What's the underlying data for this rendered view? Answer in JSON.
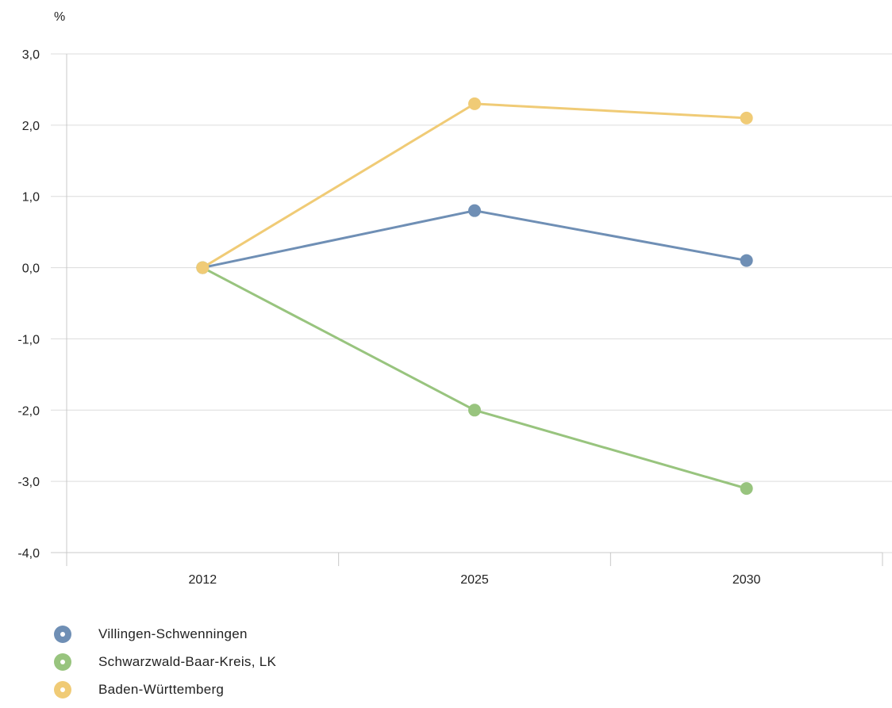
{
  "chart_data": {
    "type": "line",
    "y_unit": "%",
    "x": [
      "2012",
      "2025",
      "2030"
    ],
    "ylim": [
      -4.0,
      3.0
    ],
    "y_ticks": [
      "3,0",
      "2,0",
      "1,0",
      "0,0",
      "-1,0",
      "-2,0",
      "-3,0",
      "-4,0"
    ],
    "y_tick_values": [
      3,
      2,
      1,
      0,
      -1,
      -2,
      -3,
      -4
    ],
    "grid": true,
    "legend_position": "bottom-left",
    "series": [
      {
        "name": "Villingen-Schwenningen",
        "color": "#6f8fb5",
        "values": [
          0.0,
          0.8,
          0.1
        ]
      },
      {
        "name": "Schwarzwald-Baar-Kreis, LK",
        "color": "#98c47e",
        "values": [
          0.0,
          -2.0,
          -3.1
        ]
      },
      {
        "name": "Baden-Württemberg",
        "color": "#f0cb76",
        "values": [
          0.0,
          2.3,
          2.1
        ]
      }
    ]
  }
}
